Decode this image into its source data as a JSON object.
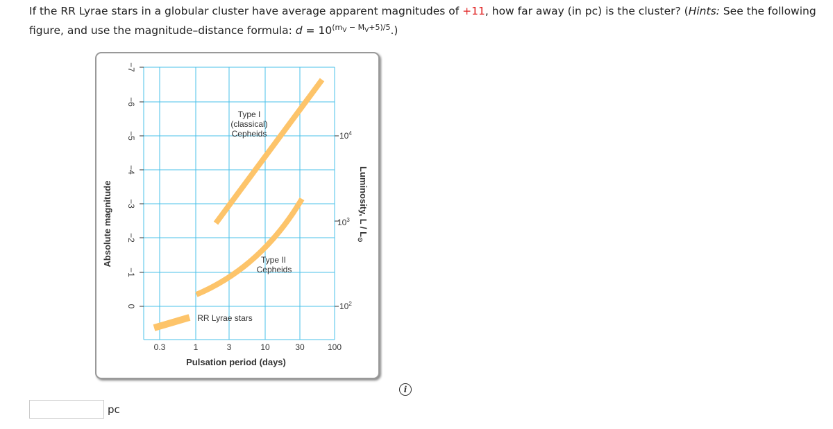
{
  "question": {
    "before": "If the RR Lyrae stars in a globular cluster have average apparent magnitudes of ",
    "value": "+11",
    "middle": ", how far away (in pc) is the cluster? (",
    "hint_label": "Hints:",
    "hint_text": " See the following figure, and use the magnitude–distance formula: ",
    "formula_var": "d",
    "formula_eq": " = 10",
    "exp_open": "(m",
    "exp_sub1": "V",
    "exp_minus": " − M",
    "exp_sub2": "V",
    "exp_close": "+5)/5",
    "end": ".)"
  },
  "figure": {
    "y_label": "Absolute magnitude",
    "y_ticks": [
      "−7",
      "−6",
      "−5",
      "−4",
      "−3",
      "−2",
      "−1",
      "0"
    ],
    "x_label": "Pulsation period (days)",
    "x_ticks": [
      "0.3",
      "1",
      "3",
      "10",
      "30",
      "100"
    ],
    "right_label": "Luminosity, L / L",
    "right_label_sub": "⊙",
    "right_ticks": [
      {
        "base": "10",
        "exp": "4"
      },
      {
        "base": "10",
        "exp": "3"
      },
      {
        "base": "10",
        "exp": "2"
      }
    ],
    "type1": [
      "Type I",
      "(classical)",
      "Cepheids"
    ],
    "type2": [
      "Type II",
      "Cepheids"
    ],
    "rr_lyrae": "RR Lyrae stars"
  },
  "answer": {
    "unit": "pc"
  },
  "info_icon": "i"
}
